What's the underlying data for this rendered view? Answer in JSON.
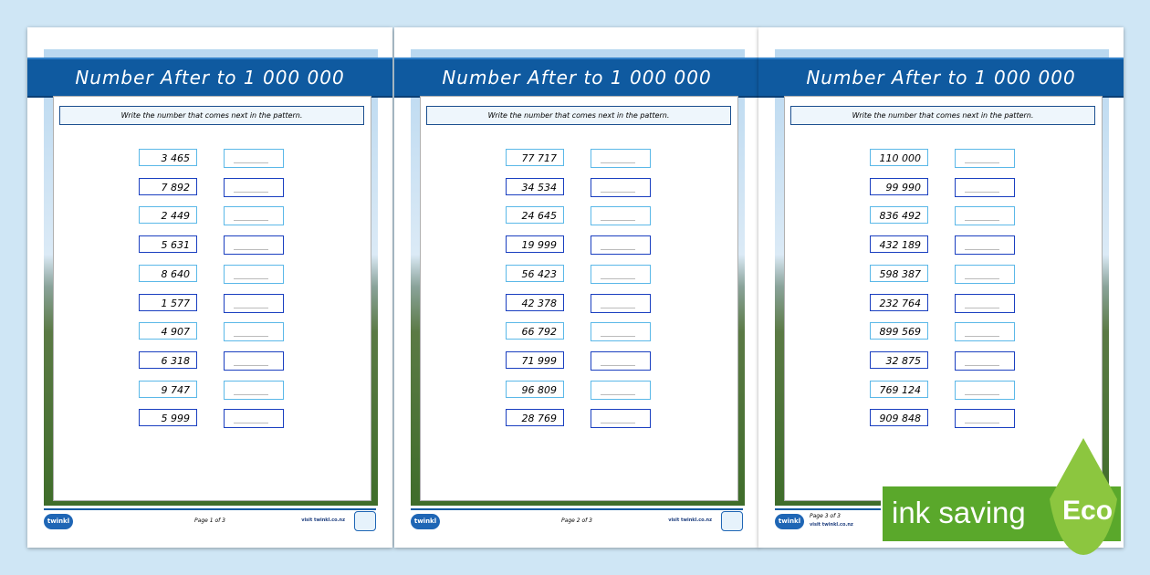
{
  "pages": [
    {
      "title": "Number After to 1 000 000",
      "instruction": "Write the number that comes next in the pattern.",
      "numbers": [
        "3 465",
        "7 892",
        "2 449",
        "5 631",
        "8 640",
        "1 577",
        "4 907",
        "6 318",
        "9 747",
        "5 999"
      ],
      "footer": "Page 1 of 3",
      "visit": "visit twinkl.co.nz",
      "logo": "twinkl"
    },
    {
      "title": "Number After to 1 000 000",
      "instruction": "Write the number that comes next in the pattern.",
      "numbers": [
        "77 717",
        "34 534",
        "24 645",
        "19 999",
        "56 423",
        "42 378",
        "66 792",
        "71 999",
        "96 809",
        "28 769"
      ],
      "footer": "Page 2 of 3",
      "visit": "visit twinkl.co.nz",
      "logo": "twinkl"
    },
    {
      "title": "Number After to 1 000 000",
      "instruction": "Write the number that comes next in the pattern.",
      "numbers": [
        "110 000",
        "99 990",
        "836 492",
        "432 189",
        "598 387",
        "232 764",
        "899 569",
        "32 875",
        "769 124",
        "909 848"
      ],
      "footer": "Page 3 of 3",
      "visit": "visit twinkl.co.nz",
      "logo": "twinkl"
    }
  ],
  "eco_badge": {
    "text": "ink saving",
    "word": "Eco",
    "color": "#5aa82b"
  },
  "colors": {
    "header": "#0f5aa0",
    "box_light": "#5bb8e8",
    "box_dark": "#1a3fc0"
  }
}
